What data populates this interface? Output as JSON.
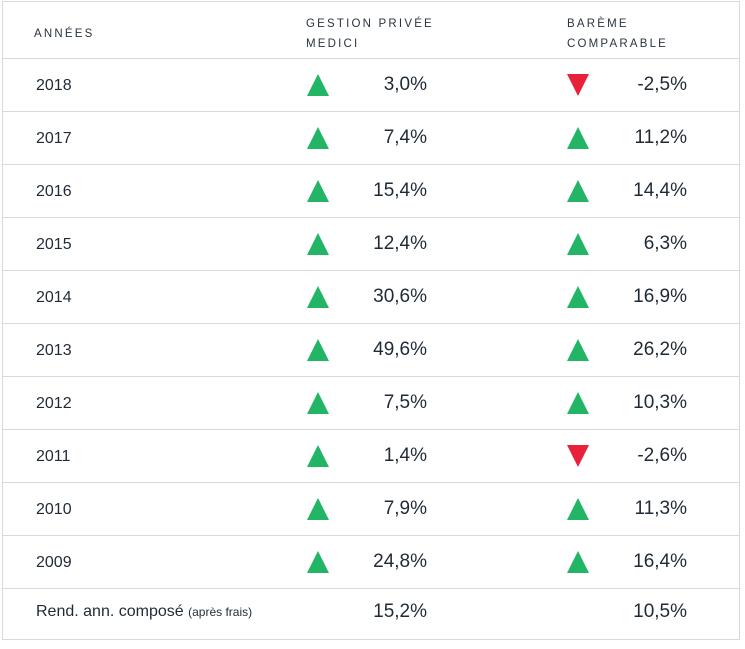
{
  "header": {
    "col_years": "ANNÉES",
    "col_medici_line1": "GESTION PRIVÉE",
    "col_medici_line2": "MEDICI",
    "col_bareme_line1": "BARÈME",
    "col_bareme_line2": "COMPARABLE"
  },
  "rows": [
    {
      "year": "2018",
      "medici": "3,0%",
      "medici_trend": "up",
      "bareme": "-2,5%",
      "bareme_trend": "down"
    },
    {
      "year": "2017",
      "medici": "7,4%",
      "medici_trend": "up",
      "bareme": "11,2%",
      "bareme_trend": "up"
    },
    {
      "year": "2016",
      "medici": "15,4%",
      "medici_trend": "up",
      "bareme": "14,4%",
      "bareme_trend": "up"
    },
    {
      "year": "2015",
      "medici": "12,4%",
      "medici_trend": "up",
      "bareme": "6,3%",
      "bareme_trend": "up"
    },
    {
      "year": "2014",
      "medici": "30,6%",
      "medici_trend": "up",
      "bareme": "16,9%",
      "bareme_trend": "up"
    },
    {
      "year": "2013",
      "medici": "49,6%",
      "medici_trend": "up",
      "bareme": "26,2%",
      "bareme_trend": "up"
    },
    {
      "year": "2012",
      "medici": "7,5%",
      "medici_trend": "up",
      "bareme": "10,3%",
      "bareme_trend": "up"
    },
    {
      "year": "2011",
      "medici": "1,4%",
      "medici_trend": "up",
      "bareme": "-2,6%",
      "bareme_trend": "down"
    },
    {
      "year": "2010",
      "medici": "7,9%",
      "medici_trend": "up",
      "bareme": "11,3%",
      "bareme_trend": "up"
    },
    {
      "year": "2009",
      "medici": "24,8%",
      "medici_trend": "up",
      "bareme": "16,4%",
      "bareme_trend": "up"
    }
  ],
  "footer": {
    "label": "Rend. ann. composé",
    "label_note": "(après frais)",
    "medici": "15,2%",
    "bareme": "10,5%"
  },
  "colors": {
    "up": "#21b565",
    "down": "#e8203a",
    "border": "#d9d9d9",
    "text": "#1f2a36"
  },
  "icons": {
    "up": "triangle-up-icon",
    "down": "triangle-down-icon"
  }
}
